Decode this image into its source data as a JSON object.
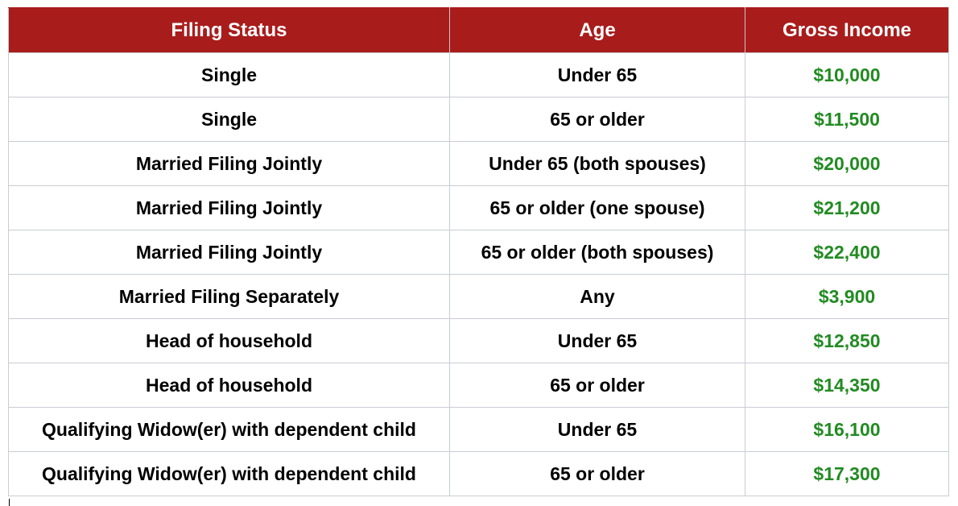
{
  "table": {
    "headers": [
      "Filing Status",
      "Age",
      "Gross Income"
    ],
    "rows": [
      {
        "filing_status": "Single",
        "age": "Under 65",
        "gross_income": "$10,000"
      },
      {
        "filing_status": "Single",
        "age": "65 or older",
        "gross_income": "$11,500"
      },
      {
        "filing_status": "Married Filing Jointly",
        "age": "Under 65 (both spouses)",
        "gross_income": "$20,000"
      },
      {
        "filing_status": "Married Filing Jointly",
        "age": "65 or older (one spouse)",
        "gross_income": "$21,200"
      },
      {
        "filing_status": "Married Filing Jointly",
        "age": "65 or older (both spouses)",
        "gross_income": "$22,400"
      },
      {
        "filing_status": "Married Filing Separately",
        "age": "Any",
        "gross_income": "$3,900"
      },
      {
        "filing_status": "Head of household",
        "age": "Under 65",
        "gross_income": "$12,850"
      },
      {
        "filing_status": "Head of household",
        "age": "65 or older",
        "gross_income": "$14,350"
      },
      {
        "filing_status": "Qualifying Widow(er) with dependent child",
        "age": "Under 65",
        "gross_income": "$16,100"
      },
      {
        "filing_status": "Qualifying Widow(er) with dependent child",
        "age": "65 or older",
        "gross_income": "$17,300"
      }
    ]
  },
  "colors": {
    "header_background": "#a91c1c",
    "header_text": "#ffffff",
    "income_text": "#228b22",
    "body_text": "#000000"
  }
}
